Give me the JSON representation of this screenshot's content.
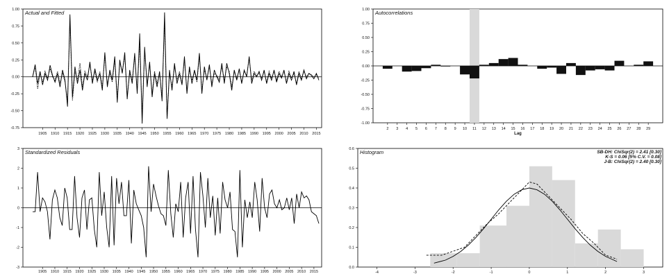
{
  "chart_data": [
    {
      "type": "line",
      "title": "Actual and Fitted",
      "ylim": [
        -0.75,
        1.0
      ],
      "yticks": [
        "1.00",
        "0.75",
        "0.50",
        "0.25",
        "0.00",
        "-0.25",
        "-0.50",
        "-0.75"
      ],
      "xticks": [
        "1905",
        "1910",
        "1915",
        "1920",
        "1925",
        "1930",
        "1935",
        "1940",
        "1945",
        "1950",
        "1955",
        "1960",
        "1965",
        "1970",
        "1975",
        "1980",
        "1985",
        "1990",
        "1995",
        "2000",
        "2005",
        "2010",
        "2015"
      ],
      "x_start": 1901,
      "grid": false,
      "series": [
        {
          "style": "solid",
          "values": [
            0.0,
            0.18,
            -0.1,
            0.08,
            -0.12,
            0.05,
            -0.05,
            0.17,
            0.02,
            -0.08,
            0.05,
            -0.15,
            0.1,
            -0.05,
            -0.44,
            0.92,
            -0.3,
            0.15,
            -0.1,
            0.1,
            -0.2,
            0.05,
            -0.05,
            0.22,
            -0.1,
            0.12,
            -0.05,
            0.05,
            -0.2,
            0.36,
            -0.15,
            0.1,
            -0.05,
            0.3,
            -0.38,
            0.25,
            0.05,
            0.36,
            -0.33,
            0.1,
            -0.1,
            0.35,
            -0.25,
            0.64,
            -0.69,
            0.44,
            -0.15,
            0.22,
            -0.3,
            0.05,
            -0.15,
            0.08,
            -0.36,
            0.95,
            -0.62,
            0.1,
            -0.2,
            0.2,
            -0.1,
            0.05,
            -0.12,
            0.3,
            -0.25,
            0.15,
            -0.1,
            0.1,
            -0.05,
            0.35,
            -0.25,
            0.15,
            -0.05,
            0.18,
            -0.15,
            0.1,
            0.0,
            -0.08,
            0.2,
            -0.1,
            0.2,
            0.05,
            -0.2,
            0.1,
            -0.05,
            0.12,
            -0.1,
            0.1,
            0.0,
            0.3,
            -0.1,
            0.05,
            0.0,
            0.08,
            -0.05,
            0.1,
            -0.1,
            0.05,
            -0.05,
            0.1,
            -0.08,
            0.05,
            -0.02,
            0.1,
            -0.1,
            0.05,
            -0.05,
            0.08,
            -0.12,
            0.05,
            -0.05,
            0.1,
            -0.03,
            0.05,
            0.02,
            -0.03,
            0.05,
            -0.05
          ]
        },
        {
          "style": "dotted",
          "values": [
            0.0,
            0.15,
            -0.18,
            0.05,
            -0.08,
            0.08,
            -0.02,
            0.12,
            0.0,
            -0.05,
            0.08,
            -0.1,
            0.06,
            -0.08,
            -0.35,
            0.82,
            -0.35,
            0.08,
            -0.05,
            0.2,
            -0.15,
            0.08,
            0.0,
            0.18,
            -0.05,
            0.08,
            -0.08,
            0.08,
            -0.15,
            0.3,
            -0.1,
            0.05,
            -0.08,
            0.25,
            -0.3,
            0.2,
            0.08,
            0.3,
            -0.28,
            0.05,
            -0.05,
            0.3,
            -0.2,
            0.5,
            -0.55,
            0.38,
            -0.1,
            0.18,
            -0.25,
            0.08,
            -0.1,
            0.05,
            -0.3,
            0.8,
            -0.6,
            0.05,
            -0.15,
            0.15,
            -0.05,
            0.08,
            -0.1,
            0.25,
            -0.2,
            0.1,
            -0.05,
            0.08,
            -0.08,
            0.3,
            -0.2,
            0.1,
            -0.02,
            0.15,
            -0.1,
            0.05,
            0.02,
            -0.05,
            0.15,
            -0.05,
            0.15,
            0.08,
            -0.15,
            0.08,
            -0.02,
            0.1,
            -0.08,
            0.08,
            0.02,
            0.27,
            -0.05,
            0.08,
            0.02,
            0.05,
            -0.02,
            0.08,
            -0.08,
            0.08,
            -0.02,
            0.08,
            -0.05,
            0.08,
            0.0,
            0.08,
            -0.08,
            0.08,
            -0.02,
            0.05,
            -0.1,
            0.08,
            -0.02,
            0.08,
            0.0,
            0.05,
            0.03,
            0.0,
            0.03,
            -0.03
          ]
        }
      ]
    },
    {
      "type": "bar",
      "title": "Autocorrelations",
      "xlabel": "Lag",
      "ylim": [
        -1.0,
        1.0
      ],
      "yticks": [
        "1.00",
        "0.75",
        "0.50",
        "0.25",
        "0.00",
        "-0.25",
        "-0.50",
        "-0.75",
        "-1.00"
      ],
      "categories": [
        "1",
        "2",
        "3",
        "4",
        "5",
        "6",
        "7",
        "8",
        "9",
        "10",
        "11",
        "12",
        "13",
        "14",
        "15",
        "16",
        "17",
        "18",
        "19",
        "20",
        "21",
        "22",
        "23",
        "24",
        "25",
        "26",
        "27",
        "28",
        "29",
        "30"
      ],
      "xticks": [
        "2",
        "3",
        "4",
        "5",
        "6",
        "7",
        "8",
        "9",
        "10",
        "11",
        "12",
        "13",
        "14",
        "15",
        "16",
        "17",
        "18",
        "19",
        "20",
        "21",
        "22",
        "23",
        "24",
        "25",
        "26",
        "27",
        "28",
        "29"
      ],
      "values": [
        0.0,
        -0.05,
        0.0,
        -0.1,
        -0.09,
        -0.04,
        0.02,
        -0.01,
        0.0,
        -0.15,
        -0.22,
        0.02,
        0.05,
        0.12,
        0.14,
        0.02,
        0.0,
        -0.05,
        -0.03,
        -0.14,
        0.05,
        -0.16,
        -0.08,
        -0.06,
        -0.08,
        0.09,
        0.0,
        0.02,
        0.08,
        0.0
      ],
      "highlight_lag": "11",
      "grid": false
    },
    {
      "type": "line",
      "title": "Standardized Residuals",
      "ylim": [
        -3,
        3
      ],
      "yticks": [
        "3",
        "2",
        "1",
        "0",
        "-1",
        "-2",
        "-3"
      ],
      "xticks": [
        "1905",
        "1910",
        "1915",
        "1920",
        "1925",
        "1930",
        "1935",
        "1940",
        "1945",
        "1950",
        "1955",
        "1960",
        "1965",
        "1970",
        "1975",
        "1980",
        "1985",
        "1990",
        "1995",
        "2000",
        "2005",
        "2010",
        "2015"
      ],
      "x_start": 1901,
      "grid": false,
      "values": [
        -0.2,
        -0.2,
        1.8,
        -0.2,
        0.5,
        0.3,
        -0.2,
        -1.6,
        0.4,
        0.9,
        0.5,
        -0.5,
        -0.9,
        1.0,
        0.5,
        -1.1,
        -1.1,
        1.6,
        -0.5,
        -1.5,
        0.5,
        0.9,
        -1.1,
        0.4,
        0.5,
        -1.1,
        -2.0,
        1.8,
        -0.4,
        0.8,
        -1.0,
        -2.0,
        1.6,
        -1.9,
        1.5,
        0.2,
        1.3,
        -0.4,
        -0.4,
        1.4,
        -1.8,
        0.9,
        0.2,
        -0.1,
        -0.4,
        -1.0,
        -2.5,
        2.1,
        -0.2,
        1.2,
        0.6,
        0.1,
        -0.3,
        -0.4,
        -0.9,
        1.9,
        -0.3,
        -1.5,
        0.2,
        -0.2,
        1.3,
        -1.5,
        0.5,
        1.3,
        -1.3,
        1.6,
        -1.1,
        -2.5,
        1.8,
        0.6,
        -1.0,
        1.5,
        -0.5,
        0.6,
        -1.4,
        0.5,
        -1.3,
        1.3,
        0.4,
        0.0,
        0.8,
        -1.1,
        -1.2,
        -2.5,
        1.9,
        -2.0,
        0.4,
        -0.5,
        0.3,
        -0.5,
        1.3,
        0.4,
        -1.2,
        1.5,
        0.0,
        -0.5,
        0.7,
        0.9,
        0.2,
        0.0,
        0.4,
        -0.1,
        0.0,
        0.5,
        -0.1,
        0.5,
        -0.8,
        0.7,
        0.0,
        0.8,
        0.5,
        0.6,
        0.4,
        -0.2,
        -0.3,
        -0.4,
        -0.8
      ]
    },
    {
      "type": "bar",
      "title": "Histogram",
      "ylim": [
        0.0,
        0.6
      ],
      "xlim": [
        -4.5,
        3.5
      ],
      "yticks": [
        "0.6",
        "0.5",
        "0.4",
        "0.3",
        "0.2",
        "0.1",
        "0.0"
      ],
      "xticks": [
        "-4",
        "-3",
        "-2",
        "-1",
        "0",
        "1",
        "2",
        "3"
      ],
      "bins": [
        {
          "from": -2.6,
          "to": -1.9,
          "value": 0.07
        },
        {
          "from": -1.9,
          "to": -1.3,
          "value": 0.07
        },
        {
          "from": -1.3,
          "to": -0.6,
          "value": 0.21
        },
        {
          "from": -0.6,
          "to": 0.0,
          "value": 0.31
        },
        {
          "from": 0.0,
          "to": 0.6,
          "value": 0.51
        },
        {
          "from": 0.6,
          "to": 1.2,
          "value": 0.44
        },
        {
          "from": 1.2,
          "to": 1.8,
          "value": 0.12
        },
        {
          "from": 1.8,
          "to": 2.4,
          "value": 0.19
        },
        {
          "from": 2.4,
          "to": 3.0,
          "value": 0.09
        }
      ],
      "curves": [
        {
          "style": "solid",
          "x": [
            -2.5,
            -2.2,
            -2.0,
            -1.8,
            -1.6,
            -1.4,
            -1.2,
            -1.0,
            -0.8,
            -0.6,
            -0.4,
            -0.2,
            0.0,
            0.2,
            0.4,
            0.6,
            0.8,
            1.0,
            1.2,
            1.4,
            1.6,
            1.8,
            2.0,
            2.3
          ],
          "y": [
            0.02,
            0.035,
            0.054,
            0.079,
            0.111,
            0.15,
            0.194,
            0.242,
            0.29,
            0.333,
            0.368,
            0.391,
            0.4,
            0.391,
            0.368,
            0.333,
            0.29,
            0.242,
            0.194,
            0.15,
            0.111,
            0.079,
            0.054,
            0.028
          ]
        },
        {
          "style": "dashed",
          "x": [
            -2.7,
            -2.3,
            -2.0,
            -1.7,
            -1.4,
            -1.1,
            -0.8,
            -0.5,
            -0.2,
            0.0,
            0.2,
            0.5,
            0.8,
            1.1,
            1.4,
            1.7,
            2.0,
            2.3
          ],
          "y": [
            0.06,
            0.06,
            0.08,
            0.1,
            0.16,
            0.22,
            0.27,
            0.33,
            0.39,
            0.43,
            0.42,
            0.36,
            0.3,
            0.24,
            0.17,
            0.12,
            0.06,
            0.04
          ]
        }
      ],
      "stats": [
        "SB-DH: ChiSqr(2) = 2.41 [0.30]",
        "K-S = 0.06 [5% C.V. = 0.08]",
        "J-B: ChiSqr(2) = 2.40 [0.30]"
      ],
      "grid": false
    }
  ]
}
